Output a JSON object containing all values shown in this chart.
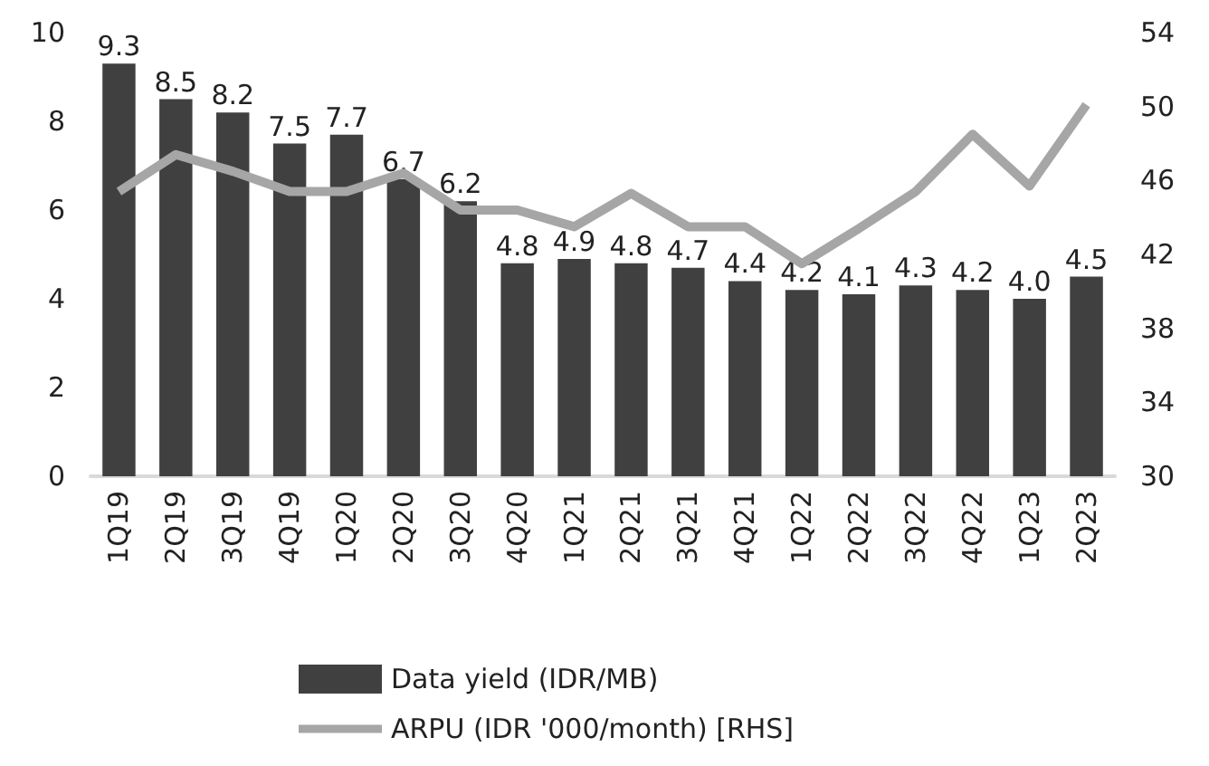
{
  "chart_data": {
    "type": "bar",
    "categories": [
      "1Q19",
      "2Q19",
      "3Q19",
      "4Q19",
      "1Q20",
      "2Q20",
      "3Q20",
      "4Q20",
      "1Q21",
      "2Q21",
      "3Q21",
      "4Q21",
      "1Q22",
      "2Q22",
      "3Q22",
      "4Q22",
      "1Q23",
      "2Q23"
    ],
    "series": [
      {
        "name": "Data yield (IDR/MB)",
        "color": "#404040",
        "values": [
          9.3,
          8.5,
          8.2,
          7.5,
          7.7,
          6.7,
          6.2,
          4.8,
          4.9,
          4.8,
          4.7,
          4.4,
          4.2,
          4.1,
          4.3,
          4.2,
          4.0,
          4.5
        ],
        "value_labels": [
          "9.3",
          "8.5",
          "8.2",
          "7.5",
          "7.7",
          "6.7",
          "6.2",
          "4.8",
          "4.9",
          "4.8",
          "4.7",
          "4.4",
          "4.2",
          "4.1",
          "4.3",
          "4.2",
          "4.0",
          "4.5"
        ]
      },
      {
        "name": "ARPU (IDR '000/month) [RHS]",
        "type": "line",
        "axis": "y2",
        "color": "#a6a6a6",
        "values": [
          45.4,
          47.4,
          46.5,
          45.4,
          45.4,
          46.4,
          44.4,
          44.4,
          43.5,
          45.3,
          43.5,
          43.5,
          41.5,
          43.4,
          45.4,
          48.5,
          45.7,
          50.1
        ]
      }
    ],
    "ylim": [
      0,
      10
    ],
    "yticks": [
      0,
      2,
      4,
      6,
      8,
      10
    ],
    "y2lim": [
      30,
      54
    ],
    "y2ticks": [
      30,
      34,
      38,
      42,
      46,
      50,
      54
    ],
    "grid": false,
    "legend": "bottom",
    "marker": "none",
    "line_style": "solid"
  }
}
